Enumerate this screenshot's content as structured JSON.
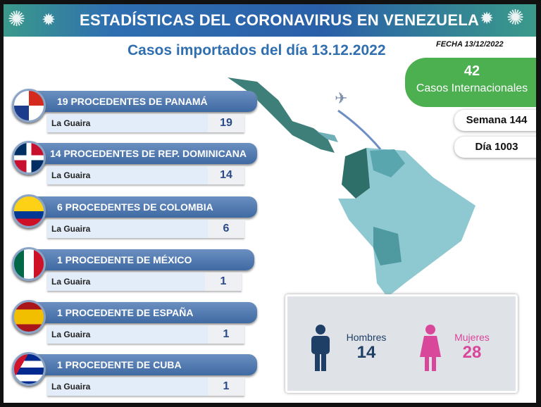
{
  "header": {
    "title": "ESTADÍSTICAS DEL CORONAVIRUS EN VENEZUELA",
    "subtitle": "Casos importados del día 13.12.2022",
    "fecha": "FECHA 13/12/2022"
  },
  "summary": {
    "total": "42",
    "total_label": "Casos Internacionales",
    "semana": "Semana 144",
    "dia": "Día 1003"
  },
  "countries": [
    {
      "flag": "panama-flag",
      "title": "19 PROCEDENTES DE PANAMÁ",
      "state": "La Guaira",
      "count": "19"
    },
    {
      "flag": "dominican-republic-flag",
      "title": "14 PROCEDENTES DE REP. DOMINICANA",
      "state": "La Guaira",
      "count": "14"
    },
    {
      "flag": "colombia-flag",
      "title": "6 PROCEDENTES DE COLOMBIA",
      "state": "La Guaira",
      "count": "6"
    },
    {
      "flag": "mexico-flag",
      "title": "1 PROCEDENTE DE MÉXICO",
      "state": "La Guaira",
      "count": "1"
    },
    {
      "flag": "spain-flag",
      "title": "1 PROCEDENTE DE ESPAÑA",
      "state": "La Guaira",
      "count": "1"
    },
    {
      "flag": "cuba-flag",
      "title": "1 PROCEDENTE DE CUBA",
      "state": "La Guaira",
      "count": "1"
    }
  ],
  "gender": {
    "men_label": "Hombres",
    "men": "14",
    "women_label": "Mujeres",
    "women": "28",
    "men_color": "#1f3f66",
    "women_color": "#d9479b"
  },
  "colors": {
    "accent": "#2f6fb0",
    "green": "#4caf50"
  }
}
